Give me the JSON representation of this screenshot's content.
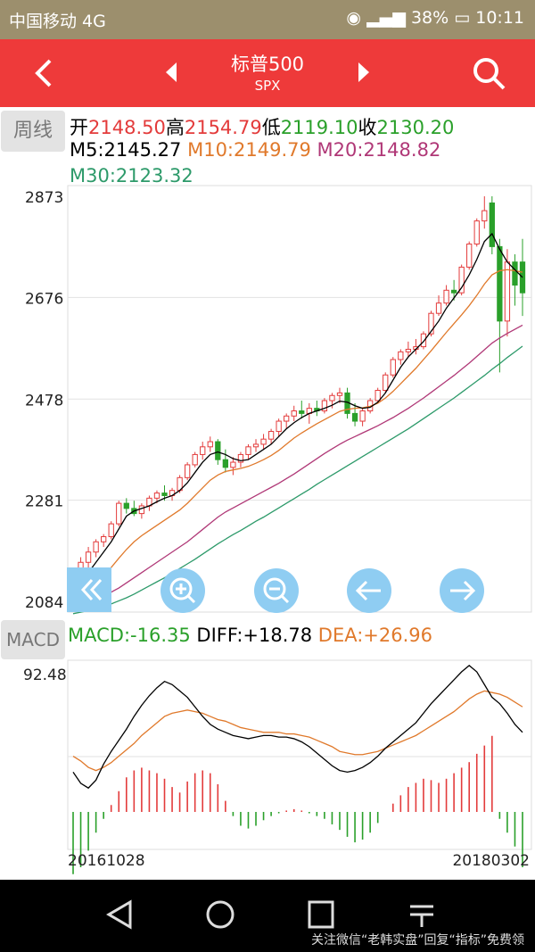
{
  "status_bar": {
    "carrier": "中国移动 4G",
    "battery": "38%",
    "time": "10:11"
  },
  "header": {
    "title": "标普500",
    "subtitle": "SPX"
  },
  "period": {
    "label": "周线"
  },
  "quote": {
    "open_label": "开",
    "open": "2148.50",
    "high_label": "高",
    "high": "2154.79",
    "low_label": "低",
    "low": "2119.10",
    "close_label": "收",
    "close": "2130.20"
  },
  "ma": {
    "m5": "M5:2145.27",
    "m10": "M10:2149.79",
    "m20": "M20:2148.82",
    "m30": "M30:2123.32"
  },
  "colors": {
    "up": "#e33b3b",
    "down": "#2aa02a",
    "m5": "#000000",
    "m10": "#e0792b",
    "m20": "#b03877",
    "m30": "#2d9a6a",
    "accent": "#ee3a3a"
  },
  "macd": {
    "label": "MACD",
    "macd": "MACD:-16.35",
    "diff": "DIFF:+18.78",
    "dea": "DEA:+26.96",
    "top_value": "92.48"
  },
  "dates": {
    "start": "20161028",
    "end": "20180302"
  },
  "controls": [
    "rewind-icon",
    "zoom-in-icon",
    "zoom-out-icon",
    "left-arrow-icon",
    "right-arrow-icon"
  ],
  "footer": {
    "watermark": "关注微信“老韩实盘”回复“指标”免费领"
  },
  "chart_data": {
    "type": "candlestick",
    "ytick_labels": [
      "2873",
      "2676",
      "2478",
      "2281",
      "2084"
    ],
    "ylim": [
      2084,
      2873
    ],
    "xlim_labels": [
      "20161028",
      "20180302"
    ],
    "candles_ohlc": [
      [
        2130,
        2150,
        2085,
        2100
      ],
      [
        2100,
        2170,
        2095,
        2160
      ],
      [
        2160,
        2190,
        2150,
        2180
      ],
      [
        2180,
        2205,
        2170,
        2200
      ],
      [
        2200,
        2215,
        2190,
        2210
      ],
      [
        2210,
        2240,
        2205,
        2235
      ],
      [
        2235,
        2280,
        2230,
        2275
      ],
      [
        2275,
        2285,
        2255,
        2265
      ],
      [
        2265,
        2280,
        2250,
        2255
      ],
      [
        2255,
        2275,
        2245,
        2270
      ],
      [
        2270,
        2290,
        2260,
        2285
      ],
      [
        2285,
        2300,
        2275,
        2295
      ],
      [
        2295,
        2310,
        2280,
        2290
      ],
      [
        2290,
        2305,
        2280,
        2300
      ],
      [
        2300,
        2330,
        2295,
        2325
      ],
      [
        2325,
        2355,
        2320,
        2350
      ],
      [
        2350,
        2375,
        2345,
        2370
      ],
      [
        2370,
        2395,
        2360,
        2385
      ],
      [
        2385,
        2405,
        2375,
        2395
      ],
      [
        2395,
        2400,
        2350,
        2360
      ],
      [
        2360,
        2380,
        2335,
        2345
      ],
      [
        2345,
        2365,
        2330,
        2355
      ],
      [
        2355,
        2375,
        2345,
        2370
      ],
      [
        2370,
        2390,
        2360,
        2385
      ],
      [
        2385,
        2400,
        2375,
        2390
      ],
      [
        2390,
        2410,
        2380,
        2400
      ],
      [
        2400,
        2420,
        2390,
        2415
      ],
      [
        2415,
        2440,
        2405,
        2435
      ],
      [
        2435,
        2450,
        2420,
        2445
      ],
      [
        2445,
        2465,
        2435,
        2455
      ],
      [
        2455,
        2475,
        2440,
        2450
      ],
      [
        2450,
        2470,
        2430,
        2460
      ],
      [
        2460,
        2475,
        2445,
        2455
      ],
      [
        2455,
        2480,
        2450,
        2475
      ],
      [
        2475,
        2490,
        2460,
        2485
      ],
      [
        2485,
        2500,
        2470,
        2490
      ],
      [
        2490,
        2500,
        2440,
        2450
      ],
      [
        2450,
        2470,
        2425,
        2435
      ],
      [
        2435,
        2460,
        2425,
        2455
      ],
      [
        2455,
        2480,
        2450,
        2475
      ],
      [
        2475,
        2500,
        2470,
        2495
      ],
      [
        2495,
        2530,
        2490,
        2525
      ],
      [
        2525,
        2560,
        2520,
        2555
      ],
      [
        2555,
        2575,
        2545,
        2570
      ],
      [
        2570,
        2590,
        2560,
        2575
      ],
      [
        2575,
        2595,
        2565,
        2580
      ],
      [
        2580,
        2610,
        2575,
        2605
      ],
      [
        2605,
        2650,
        2600,
        2645
      ],
      [
        2645,
        2680,
        2640,
        2665
      ],
      [
        2665,
        2700,
        2660,
        2690
      ],
      [
        2690,
        2710,
        2670,
        2685
      ],
      [
        2685,
        2740,
        2680,
        2735
      ],
      [
        2735,
        2785,
        2730,
        2780
      ],
      [
        2780,
        2830,
        2775,
        2825
      ],
      [
        2825,
        2873,
        2810,
        2845
      ],
      [
        2860,
        2873,
        2760,
        2775
      ],
      [
        2775,
        2790,
        2530,
        2630
      ],
      [
        2630,
        2770,
        2600,
        2745
      ],
      [
        2745,
        2760,
        2660,
        2700
      ],
      [
        2745,
        2790,
        2640,
        2685
      ]
    ],
    "ma5": [
      2110,
      2125,
      2140,
      2160,
      2180,
      2200,
      2225,
      2250,
      2260,
      2265,
      2270,
      2278,
      2285,
      2290,
      2300,
      2315,
      2335,
      2355,
      2370,
      2375,
      2370,
      2362,
      2358,
      2360,
      2370,
      2380,
      2390,
      2405,
      2420,
      2432,
      2442,
      2450,
      2455,
      2460,
      2466,
      2474,
      2472,
      2465,
      2460,
      2462,
      2472,
      2490,
      2515,
      2540,
      2560,
      2575,
      2590,
      2610,
      2630,
      2655,
      2675,
      2695,
      2720,
      2750,
      2785,
      2800,
      2770,
      2745,
      2730,
      2715
    ],
    "ma10": [
      2090,
      2098,
      2108,
      2120,
      2135,
      2150,
      2168,
      2185,
      2200,
      2212,
      2222,
      2232,
      2242,
      2252,
      2262,
      2275,
      2290,
      2305,
      2320,
      2330,
      2337,
      2340,
      2343,
      2347,
      2353,
      2360,
      2368,
      2378,
      2390,
      2402,
      2412,
      2421,
      2430,
      2438,
      2446,
      2454,
      2458,
      2460,
      2461,
      2464,
      2470,
      2480,
      2493,
      2508,
      2523,
      2538,
      2555,
      2572,
      2590,
      2608,
      2625,
      2642,
      2660,
      2680,
      2702,
      2720,
      2728,
      2730,
      2728,
      2725
    ],
    "ma20": [
      2070,
      2075,
      2080,
      2087,
      2094,
      2102,
      2110,
      2120,
      2130,
      2140,
      2150,
      2160,
      2170,
      2180,
      2190,
      2200,
      2212,
      2224,
      2236,
      2248,
      2258,
      2266,
      2274,
      2282,
      2290,
      2298,
      2306,
      2314,
      2323,
      2332,
      2342,
      2352,
      2362,
      2372,
      2381,
      2390,
      2398,
      2405,
      2412,
      2419,
      2426,
      2434,
      2442,
      2451,
      2460,
      2470,
      2480,
      2491,
      2502,
      2513,
      2524,
      2536,
      2548,
      2561,
      2574,
      2587,
      2597,
      2606,
      2614,
      2622
    ],
    "ma30": [
      2060,
      2063,
      2066,
      2070,
      2074,
      2079,
      2085,
      2091,
      2098,
      2106,
      2114,
      2122,
      2130,
      2139,
      2148,
      2157,
      2166,
      2176,
      2186,
      2196,
      2205,
      2214,
      2222,
      2231,
      2240,
      2248,
      2257,
      2266,
      2275,
      2284,
      2293,
      2302,
      2312,
      2321,
      2330,
      2339,
      2348,
      2357,
      2366,
      2375,
      2384,
      2393,
      2402,
      2411,
      2420,
      2430,
      2440,
      2450,
      2460,
      2470,
      2480,
      2491,
      2502,
      2513,
      2524,
      2536,
      2547,
      2559,
      2570,
      2581
    ],
    "macd_hist": [
      -45,
      -40,
      -28,
      -15,
      -5,
      5,
      15,
      25,
      30,
      32,
      30,
      28,
      24,
      18,
      14,
      22,
      28,
      30,
      28,
      20,
      8,
      -3,
      -10,
      -12,
      -10,
      -6,
      -3,
      -1,
      1,
      2,
      1,
      -1,
      -3,
      -5,
      -9,
      -13,
      -18,
      -22,
      -20,
      -15,
      -8,
      0,
      6,
      12,
      18,
      21,
      24,
      23,
      21,
      24,
      28,
      32,
      36,
      42,
      48,
      55,
      -5,
      -15,
      -25,
      -40
    ],
    "diff": [
      25,
      18,
      15,
      20,
      30,
      38,
      45,
      52,
      60,
      67,
      73,
      78,
      82,
      80,
      76,
      72,
      66,
      60,
      55,
      52,
      50,
      48,
      47,
      46,
      47,
      48,
      48,
      47,
      47,
      46,
      44,
      41,
      37,
      33,
      29,
      26,
      25,
      26,
      28,
      31,
      35,
      40,
      44,
      48,
      52,
      56,
      62,
      68,
      73,
      78,
      83,
      88,
      92,
      88,
      80,
      72,
      68,
      62,
      55,
      50
    ],
    "dea": [
      35,
      32,
      28,
      26,
      28,
      31,
      35,
      39,
      43,
      48,
      52,
      56,
      60,
      62,
      63,
      64,
      63,
      62,
      60,
      58,
      57,
      55,
      53,
      52,
      51,
      50,
      50,
      50,
      49,
      49,
      48,
      47,
      45,
      43,
      41,
      38,
      37,
      36,
      36,
      37,
      38,
      40,
      42,
      44,
      46,
      48,
      51,
      54,
      57,
      60,
      63,
      67,
      71,
      74,
      76,
      75,
      74,
      72,
      69,
      66
    ]
  }
}
